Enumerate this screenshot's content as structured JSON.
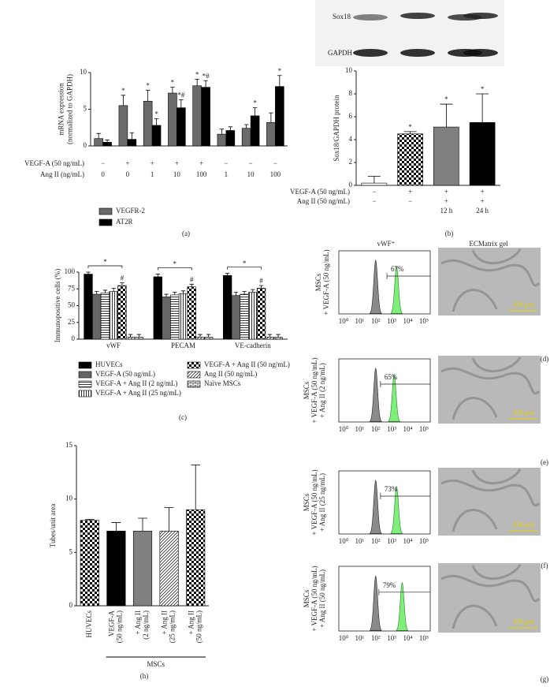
{
  "chart_data": [
    {
      "type": "bar",
      "panel": "(a)",
      "y_label": [
        "mRNA expression",
        "(normalized to GAPDH)"
      ],
      "ylim": [
        0,
        10
      ],
      "yticks": [
        0,
        5,
        10
      ],
      "condition_rows": [
        {
          "label": "VEGF-A (50 ng/mL)",
          "values": [
            "−",
            "+",
            "+",
            "+",
            "+",
            "−",
            "−",
            "−"
          ]
        },
        {
          "label": "Ang II (ng/mL)",
          "values": [
            "0",
            "0",
            "1",
            "10",
            "100",
            "1",
            "10",
            "100"
          ]
        }
      ],
      "series": [
        {
          "name": "VEGFR-2",
          "color": "#6b6b6b",
          "values": [
            1.0,
            5.5,
            6.1,
            7.2,
            8.2,
            1.6,
            2.4,
            3.2
          ],
          "errors": [
            0.7,
            1.4,
            1.5,
            0.8,
            0.9,
            0.7,
            0.5,
            1.3
          ],
          "marks": [
            null,
            "*",
            "*",
            "*",
            "*",
            null,
            null,
            null
          ]
        },
        {
          "name": "AT2R",
          "color": "#000000",
          "values": [
            0.5,
            0.9,
            2.8,
            5.2,
            8.0,
            2.1,
            4.1,
            8.1
          ],
          "errors": [
            0.3,
            0.9,
            0.9,
            1.1,
            0.9,
            0.5,
            1.1,
            1.5
          ],
          "marks": [
            null,
            null,
            "*",
            "*#",
            "*#",
            null,
            "*",
            "*"
          ]
        }
      ]
    },
    {
      "type": "bar",
      "panel": "(b)",
      "blot_labels": [
        "Sox18",
        "GAPDH"
      ],
      "y_label": [
        "Sox18/GAPDH protein"
      ],
      "ylim": [
        0,
        10
      ],
      "yticks": [
        0,
        2,
        4,
        6,
        8,
        10
      ],
      "condition_rows": [
        {
          "label": "VEGF-A (50 ng/mL)",
          "values": [
            "−",
            "+",
            "+",
            "+"
          ]
        },
        {
          "label": "Ang II (50 ng/mL)",
          "values": [
            "−",
            "−",
            "+",
            "+"
          ]
        },
        {
          "label": null,
          "values": [
            null,
            null,
            "12 h",
            "24 h"
          ]
        }
      ],
      "series": [
        {
          "fills": [
            "#ffffff",
            "checker",
            "#808080",
            "#000000"
          ],
          "values": [
            0.2,
            4.5,
            5.1,
            5.5
          ],
          "errors": [
            0.6,
            0.2,
            2.0,
            2.5
          ],
          "marks": [
            null,
            "*",
            "*",
            "*"
          ]
        }
      ]
    },
    {
      "type": "bar",
      "panel": "(c)",
      "y_label": [
        "Immunopositive cells (%)"
      ],
      "ylim": [
        0,
        100
      ],
      "yticks": [
        0,
        25,
        50,
        75,
        100
      ],
      "categories": [
        "vWF",
        "PECAM",
        "VE-cadherin"
      ],
      "bracket_label": "*",
      "series": [
        {
          "name": "HUVECs",
          "color": "#000000",
          "values": [
            97,
            93,
            95
          ],
          "errors": [
            3,
            4,
            3
          ],
          "marks": [
            null,
            null,
            null
          ]
        },
        {
          "name": "VEGF-A (50 ng/mL)",
          "color": "#666666",
          "values": [
            67,
            63,
            65
          ],
          "errors": [
            4,
            4,
            5
          ],
          "marks": [
            null,
            null,
            null
          ]
        },
        {
          "name": "VEGF-A + Ang II (2 ng/mL)",
          "pattern": "hlines",
          "values": [
            69,
            66,
            67
          ],
          "errors": [
            4,
            4,
            4
          ],
          "marks": [
            null,
            null,
            null
          ]
        },
        {
          "name": "VEGF-A + Ang II (25 ng/mL)",
          "pattern": "vlines",
          "values": [
            71,
            68,
            70
          ],
          "errors": [
            5,
            4,
            4
          ],
          "marks": [
            null,
            null,
            null
          ]
        },
        {
          "name": "VEGF-A + Ang II (50 ng/mL)",
          "pattern": "checker",
          "values": [
            80,
            78,
            76
          ],
          "errors": [
            4,
            4,
            4
          ],
          "marks": [
            "#",
            "#",
            "#"
          ]
        },
        {
          "name": "Ang II (50 ng/mL)",
          "pattern": "hatch",
          "values": [
            3,
            3,
            3
          ],
          "errors": [
            4,
            4,
            4
          ],
          "marks": [
            null,
            null,
            null
          ]
        },
        {
          "name": "Naïve MSCs",
          "pattern": "bricks",
          "values": [
            3,
            3,
            3
          ],
          "errors": [
            4,
            4,
            4
          ],
          "marks": [
            null,
            null,
            null
          ]
        }
      ]
    },
    {
      "type": "bar",
      "panel": "(h)",
      "y_label": [
        "Tubes/unit area"
      ],
      "ylim": [
        0,
        15
      ],
      "yticks": [
        0,
        5,
        10,
        15
      ],
      "categories": [
        [
          "HUVECs"
        ],
        [
          "VEGF-A",
          "(50 ng/mL)"
        ],
        [
          "+ Ang II",
          "(2 ng/mL)"
        ],
        [
          "+ Ang II",
          "(25 ng/mL)"
        ],
        [
          "+ Ang II",
          "(50 ng/mL)"
        ]
      ],
      "group_label": "MSCs",
      "series": [
        {
          "fills": [
            "checker",
            "#000000",
            "#808080",
            "hatch",
            "checker"
          ],
          "values": [
            8,
            7,
            7,
            7,
            9
          ],
          "errors": [
            0.1,
            0.8,
            1.2,
            2.2,
            4.2
          ],
          "marks": [
            null,
            null,
            null,
            null,
            null
          ]
        }
      ]
    }
  ],
  "flow": {
    "title": "vWF⁺",
    "image_title": "ECMatrix gel",
    "xticks": [
      "10⁰",
      "10¹",
      "10²",
      "10³",
      "10⁴",
      "10⁵"
    ],
    "rows": [
      {
        "panel": "(d)",
        "y_label": [
          "MSCs",
          "+ VEGF-A (50 ng/mL)"
        ],
        "percent": "67%",
        "scale_bar": "100 μm"
      },
      {
        "panel": "(e)",
        "y_label": [
          "MSCs",
          "+ VEGF-A (50 ng/mL)",
          "+ Ang II (2 ng/mL)"
        ],
        "percent": "65%",
        "scale_bar": "100 μm"
      },
      {
        "panel": "(f)",
        "y_label": [
          "MSCs",
          "+ VEGF-A (50 ng/mL)",
          "+ Ang II (25 ng/mL)"
        ],
        "percent": "73%",
        "scale_bar": "100 μm"
      },
      {
        "panel": "(g)",
        "y_label": [
          "MSCs",
          "+ VEGF-A (50 ng/mL)",
          "+ Ang II (50 ng/mL)"
        ],
        "percent": "79%",
        "scale_bar": "100 μm"
      }
    ]
  }
}
